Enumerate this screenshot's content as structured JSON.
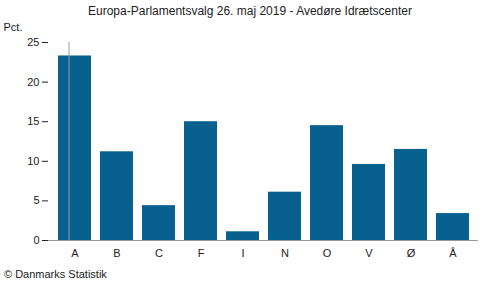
{
  "chart_data": {
    "type": "bar",
    "title": "Europa-Parlamentsvalg 26. maj 2019 - Avedøre Idrætscenter",
    "y_label": "Pct.",
    "caption": "© Danmarks Statistik",
    "categories": [
      "A",
      "B",
      "C",
      "F",
      "I",
      "N",
      "O",
      "V",
      "Ø",
      "Å"
    ],
    "values": [
      23.3,
      11.2,
      4.4,
      15.0,
      1.1,
      6.1,
      14.5,
      9.6,
      11.5,
      3.4
    ],
    "color": "#08608f",
    "ylim": [
      0,
      25
    ],
    "yticks": [
      0,
      5,
      10,
      15,
      20,
      25
    ],
    "grid": false
  }
}
